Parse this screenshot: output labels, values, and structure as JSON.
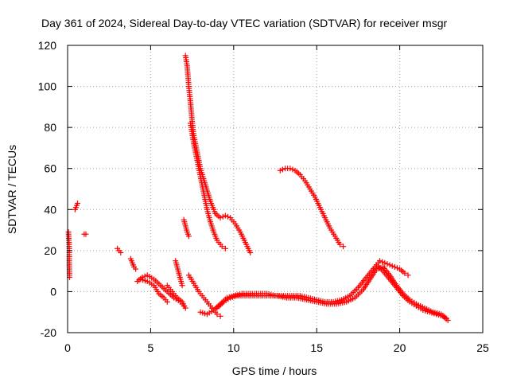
{
  "chart_data": {
    "type": "scatter",
    "title": "Day 361 of 2024, Sidereal Day-to-day VTEC variation (SDTVAR) for receiver msgr",
    "xlabel": "GPS time / hours",
    "ylabel": "SDTVAR / TECUs",
    "xlim": [
      0,
      25
    ],
    "ylim": [
      -20,
      120
    ],
    "xticks": [
      0,
      5,
      10,
      15,
      20,
      25
    ],
    "yticks": [
      -20,
      0,
      20,
      40,
      60,
      80,
      100,
      120
    ],
    "grid": true,
    "marker": "plus",
    "color": "#ff0000",
    "series": [
      {
        "name": "arc-1",
        "points": [
          [
            0.05,
            29
          ],
          [
            0.08,
            25
          ],
          [
            0.1,
            21
          ],
          [
            0.1,
            18
          ],
          [
            0.1,
            13
          ],
          [
            0.12,
            7
          ]
        ]
      },
      {
        "name": "arc-2",
        "points": [
          [
            0.45,
            40
          ],
          [
            0.5,
            41
          ],
          [
            0.55,
            42
          ],
          [
            0.6,
            43
          ]
        ]
      },
      {
        "name": "arc-3",
        "points": [
          [
            1.0,
            28
          ],
          [
            1.1,
            28
          ]
        ]
      },
      {
        "name": "arc-4",
        "points": [
          [
            3.0,
            21
          ],
          [
            3.1,
            20
          ],
          [
            3.2,
            19
          ]
        ]
      },
      {
        "name": "arc-5",
        "points": [
          [
            3.8,
            16
          ],
          [
            3.9,
            14
          ],
          [
            4.0,
            12
          ],
          [
            4.1,
            11
          ]
        ]
      },
      {
        "name": "arc-6",
        "points": [
          [
            4.2,
            5
          ],
          [
            4.5,
            7
          ],
          [
            4.8,
            8
          ],
          [
            5.2,
            6
          ],
          [
            5.6,
            3
          ],
          [
            6.0,
            0
          ],
          [
            6.4,
            -3
          ],
          [
            6.8,
            -5
          ],
          [
            7.0,
            -7
          ]
        ]
      },
      {
        "name": "arc-7",
        "points": [
          [
            4.4,
            6
          ],
          [
            4.8,
            5
          ],
          [
            5.2,
            3
          ],
          [
            5.5,
            -1
          ],
          [
            5.8,
            -3
          ],
          [
            6.0,
            -5
          ]
        ]
      },
      {
        "name": "arc-8",
        "points": [
          [
            6.0,
            3
          ],
          [
            6.3,
            0
          ],
          [
            6.6,
            -3
          ],
          [
            6.9,
            -5
          ],
          [
            7.1,
            -8
          ]
        ]
      },
      {
        "name": "arc-9",
        "points": [
          [
            6.5,
            15
          ],
          [
            6.6,
            12
          ],
          [
            6.7,
            9
          ],
          [
            6.8,
            6
          ],
          [
            6.9,
            3
          ]
        ]
      },
      {
        "name": "arc-10",
        "points": [
          [
            7.0,
            35
          ],
          [
            7.1,
            32
          ],
          [
            7.2,
            29
          ],
          [
            7.3,
            27
          ]
        ]
      },
      {
        "name": "arc-11",
        "points": [
          [
            7.1,
            115
          ],
          [
            7.2,
            110
          ],
          [
            7.3,
            100
          ],
          [
            7.4,
            92
          ],
          [
            7.5,
            83
          ],
          [
            7.6,
            76
          ],
          [
            7.8,
            68
          ],
          [
            8.0,
            60
          ],
          [
            8.3,
            52
          ],
          [
            8.6,
            44
          ],
          [
            8.9,
            38
          ],
          [
            9.2,
            36
          ],
          [
            9.5,
            37
          ],
          [
            9.8,
            36
          ],
          [
            10.1,
            33
          ],
          [
            10.4,
            29
          ],
          [
            10.7,
            24
          ],
          [
            11.0,
            19
          ]
        ]
      },
      {
        "name": "arc-12",
        "points": [
          [
            7.4,
            82
          ],
          [
            7.6,
            72
          ],
          [
            7.8,
            64
          ],
          [
            8.0,
            56
          ],
          [
            8.2,
            48
          ],
          [
            8.4,
            40
          ],
          [
            8.6,
            34
          ],
          [
            8.8,
            29
          ],
          [
            9.0,
            25
          ],
          [
            9.3,
            22
          ],
          [
            9.5,
            21
          ]
        ]
      },
      {
        "name": "arc-13",
        "points": [
          [
            7.3,
            8
          ],
          [
            7.6,
            4
          ],
          [
            7.9,
            0
          ],
          [
            8.2,
            -3
          ],
          [
            8.5,
            -6
          ],
          [
            8.8,
            -9
          ],
          [
            9.0,
            -11
          ],
          [
            9.2,
            -12
          ]
        ]
      },
      {
        "name": "arc-14",
        "points": [
          [
            8.0,
            -10
          ],
          [
            8.4,
            -11
          ],
          [
            8.8,
            -9
          ],
          [
            9.2,
            -6
          ],
          [
            9.6,
            -3
          ],
          [
            10.0,
            -2
          ],
          [
            10.5,
            -1
          ],
          [
            11.0,
            -1
          ],
          [
            11.5,
            -1
          ],
          [
            12.0,
            -1
          ],
          [
            12.5,
            -2
          ],
          [
            13.0,
            -2
          ],
          [
            13.5,
            -2
          ],
          [
            14.0,
            -2
          ],
          [
            14.5,
            -3
          ],
          [
            15.0,
            -4
          ],
          [
            15.5,
            -5
          ],
          [
            16.0,
            -5
          ],
          [
            16.5,
            -4
          ],
          [
            17.0,
            -2
          ],
          [
            17.5,
            2
          ],
          [
            18.0,
            7
          ],
          [
            18.5,
            12
          ],
          [
            18.8,
            15
          ],
          [
            19.1,
            14
          ],
          [
            19.4,
            13
          ],
          [
            19.7,
            12
          ],
          [
            20.0,
            11
          ],
          [
            20.3,
            9
          ],
          [
            20.5,
            8
          ]
        ]
      },
      {
        "name": "arc-15",
        "points": [
          [
            9.0,
            -8
          ],
          [
            9.4,
            -5
          ],
          [
            9.8,
            -3
          ],
          [
            10.2,
            -2
          ],
          [
            10.8,
            -2
          ],
          [
            11.4,
            -2
          ],
          [
            12.0,
            -2
          ],
          [
            12.6,
            -2
          ],
          [
            13.2,
            -3
          ],
          [
            13.8,
            -3
          ],
          [
            14.4,
            -4
          ],
          [
            15.0,
            -5
          ],
          [
            15.6,
            -6
          ],
          [
            16.2,
            -6
          ],
          [
            16.8,
            -5
          ],
          [
            17.3,
            -3
          ],
          [
            17.8,
            1
          ],
          [
            18.2,
            6
          ],
          [
            18.6,
            11
          ],
          [
            19.0,
            12
          ],
          [
            19.4,
            8
          ],
          [
            19.8,
            3
          ],
          [
            20.2,
            -1
          ],
          [
            20.6,
            -4
          ],
          [
            21.0,
            -6
          ],
          [
            21.5,
            -8
          ],
          [
            22.0,
            -10
          ],
          [
            22.5,
            -11
          ],
          [
            22.8,
            -13
          ]
        ]
      },
      {
        "name": "arc-16",
        "points": [
          [
            18.6,
            13
          ],
          [
            19.0,
            10
          ],
          [
            19.4,
            6
          ],
          [
            19.8,
            2
          ],
          [
            20.2,
            -2
          ],
          [
            20.6,
            -5
          ],
          [
            21.0,
            -7
          ],
          [
            21.4,
            -9
          ],
          [
            21.8,
            -10
          ],
          [
            22.2,
            -11
          ],
          [
            22.6,
            -12
          ],
          [
            22.9,
            -14
          ]
        ]
      },
      {
        "name": "arc-17",
        "points": [
          [
            12.8,
            59
          ],
          [
            13.1,
            60
          ],
          [
            13.4,
            60
          ],
          [
            13.7,
            59
          ],
          [
            14.0,
            57
          ],
          [
            14.3,
            54
          ],
          [
            14.6,
            50
          ],
          [
            14.9,
            46
          ],
          [
            15.2,
            41
          ],
          [
            15.5,
            36
          ],
          [
            15.8,
            31
          ],
          [
            16.1,
            27
          ],
          [
            16.4,
            23
          ],
          [
            16.6,
            22
          ]
        ]
      }
    ]
  }
}
